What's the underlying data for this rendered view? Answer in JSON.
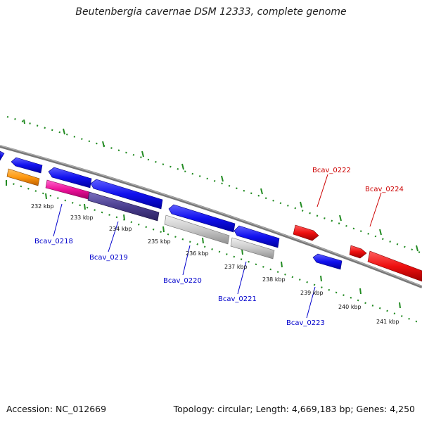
{
  "title": "Beutenbergia cavernae DSM 12333, complete genome",
  "footer": {
    "accession": "Accession: NC_012669",
    "summary": "Topology: circular; Length: 4,669,183 bp; Genes: 4,250"
  },
  "ticks": [
    {
      "label": "232 kbp"
    },
    {
      "label": "233 kbp"
    },
    {
      "label": "234 kbp"
    },
    {
      "label": "235 kbp"
    },
    {
      "label": "236 kbp"
    },
    {
      "label": "237 kbp"
    },
    {
      "label": "238 kbp"
    },
    {
      "label": "239 kbp"
    },
    {
      "label": "240 kbp"
    },
    {
      "label": "241 kbp"
    }
  ],
  "gene_labels": [
    {
      "name": "Bcav_0218",
      "color": "#0000cc"
    },
    {
      "name": "Bcav_0219",
      "color": "#0000cc"
    },
    {
      "name": "Bcav_0220",
      "color": "#0000cc"
    },
    {
      "name": "Bcav_0221",
      "color": "#0000cc"
    },
    {
      "name": "Bcav_0222",
      "color": "#cc0000"
    },
    {
      "name": "Bcav_0223",
      "color": "#0000cc"
    },
    {
      "name": "Bcav_0224",
      "color": "#cc0000"
    }
  ],
  "colors": {
    "backbone": "#808080",
    "dots": "#228b22",
    "blue": "#1010ee",
    "red": "#ee1010",
    "gray": "#c8c8c8",
    "orange": "#ff9910",
    "magenta": "#ee1199",
    "purple": "#4b3f8f"
  }
}
